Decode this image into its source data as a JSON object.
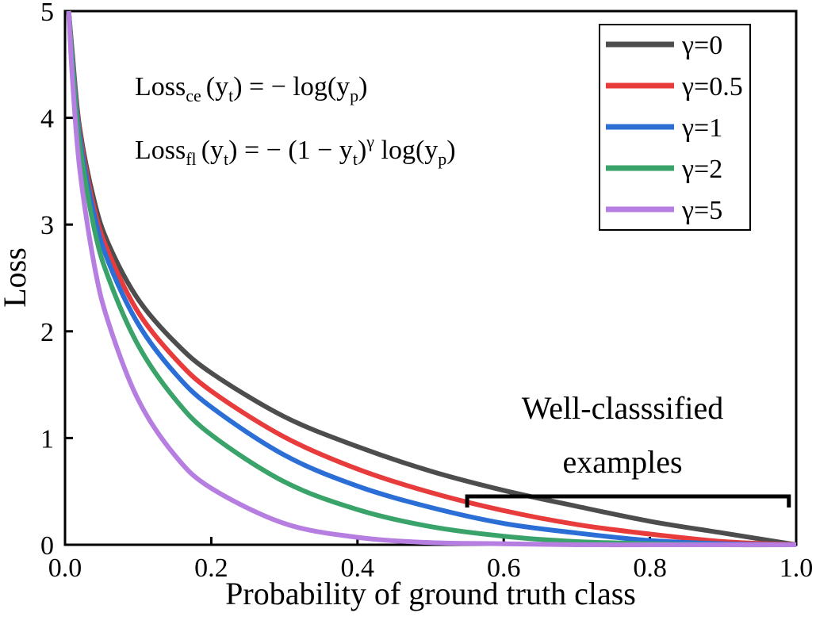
{
  "chart_data": {
    "type": "line",
    "title": "",
    "xlabel": "Probability of ground truth class",
    "ylabel": "Loss",
    "xlim": [
      0,
      1
    ],
    "ylim": [
      0,
      5
    ],
    "x_ticks": [
      0,
      0.2,
      0.4,
      0.6,
      0.8,
      1.0
    ],
    "x_tick_labels": [
      "0.0",
      "0.2",
      "0.4",
      "0.6",
      "0.8",
      "1.0"
    ],
    "y_ticks": [
      0,
      1,
      2,
      3,
      4,
      5
    ],
    "y_tick_labels": [
      "0",
      "1",
      "2",
      "3",
      "4",
      "5"
    ],
    "grid": false,
    "legend_position": "top-right",
    "x": [
      0.005,
      0.01,
      0.02,
      0.04,
      0.06,
      0.1,
      0.15,
      0.2,
      0.3,
      0.4,
      0.5,
      0.6,
      0.7,
      0.8,
      0.9,
      1.0
    ],
    "series": [
      {
        "name": "γ=0",
        "color": "#4d4d4d",
        "values": [
          5.0,
          4.61,
          3.91,
          3.22,
          2.81,
          2.3,
          1.9,
          1.61,
          1.2,
          0.92,
          0.69,
          0.51,
          0.36,
          0.22,
          0.11,
          0.0
        ]
      },
      {
        "name": "γ=0.5",
        "color": "#e83b3b",
        "values": [
          5.0,
          4.59,
          3.87,
          3.15,
          2.73,
          2.18,
          1.75,
          1.44,
          1.01,
          0.71,
          0.49,
          0.32,
          0.19,
          0.1,
          0.03,
          0.0
        ]
      },
      {
        "name": "γ=1",
        "color": "#2b6fd6",
        "values": [
          5.0,
          4.56,
          3.83,
          3.09,
          2.64,
          2.07,
          1.61,
          1.29,
          0.84,
          0.55,
          0.35,
          0.2,
          0.11,
          0.04,
          0.01,
          0.0
        ]
      },
      {
        "name": "γ=2",
        "color": "#3aa36a",
        "values": [
          5.0,
          4.52,
          3.76,
          2.96,
          2.49,
          1.87,
          1.37,
          1.03,
          0.59,
          0.33,
          0.17,
          0.08,
          0.03,
          0.01,
          0.0,
          0.0
        ]
      },
      {
        "name": "γ=5",
        "color": "#b57ee0",
        "values": [
          5.0,
          4.38,
          3.53,
          2.62,
          2.07,
          1.36,
          0.84,
          0.53,
          0.2,
          0.07,
          0.02,
          0.01,
          0.0,
          0.0,
          0.0,
          0.0
        ]
      }
    ],
    "annotations": {
      "well_classified_line1": "Well-classsified",
      "well_classified_line2": "examples",
      "bracket_x_range": [
        0.55,
        0.99
      ]
    },
    "formulas": {
      "ce": {
        "lhs": "Loss",
        "sub": "ce",
        "args": "(y",
        "arg_sub": "t",
        "rhs_open": ") = − log(y",
        "rhs_sub": "p",
        "rhs_close": ")"
      },
      "fl": {
        "lhs": "Loss",
        "sub": "fl",
        "args": "(y",
        "arg_sub": "t",
        "rhs_open": ") = − (1 − y",
        "rhs_sub": "t",
        "rhs_mid": ")",
        "rhs_sup": "γ",
        "rhs_log": " log(y",
        "rhs_sub2": "p",
        "rhs_close": ")"
      }
    }
  }
}
